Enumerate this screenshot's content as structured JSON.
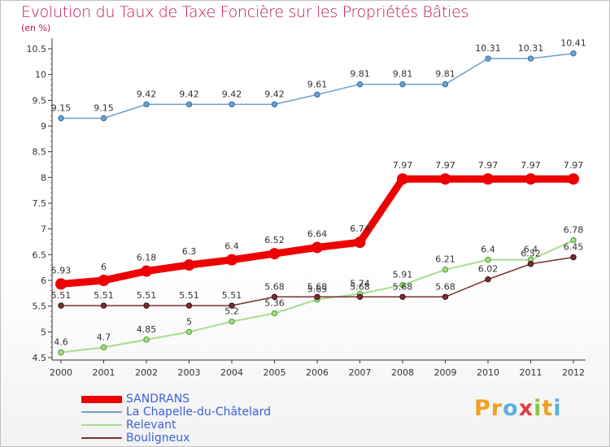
{
  "title": "Evolution du Taux de Taxe Foncière sur les Propriétés Bâties",
  "subtitle": "(en %)",
  "logo": {
    "text": "Proxiti",
    "letters": [
      "P",
      "r",
      "o",
      "x",
      "i",
      "t",
      "i"
    ],
    "colors": [
      "#f0a020",
      "#f0a020",
      "#5ab0e0",
      "#e04040",
      "#8cc63f",
      "#f0a020",
      "#5ab0e0"
    ]
  },
  "chart_data": {
    "type": "line",
    "x": [
      "2000",
      "2001",
      "2002",
      "2003",
      "2004",
      "2005",
      "2006",
      "2007",
      "2008",
      "2009",
      "2010",
      "2011",
      "2012"
    ],
    "ylim": [
      4.5,
      10.5
    ],
    "yticks": [
      "4.5",
      "5",
      "5.5",
      "6",
      "6.5",
      "7",
      "7.5",
      "8",
      "8.5",
      "9",
      "9.5",
      "10",
      "10.5"
    ],
    "grid": false,
    "legend_position": "bottom-left",
    "series": [
      {
        "name": "SANDRANS",
        "color": "#ee0000",
        "values": [
          5.93,
          6,
          6.18,
          6.3,
          6.4,
          6.52,
          6.64,
          6.74,
          7.97,
          7.97,
          7.97,
          7.97,
          7.97
        ],
        "labels": [
          "5.93",
          "6",
          "6.18",
          "6.3",
          "6.4",
          "6.52",
          "6.64",
          "6.74",
          "7.97",
          "7.97",
          "7.97",
          "7.97",
          "7.97"
        ]
      },
      {
        "name": "La Chapelle-du-Châtelard",
        "color": "#6fa0cc",
        "values": [
          9.15,
          9.15,
          9.42,
          9.42,
          9.42,
          9.42,
          9.61,
          9.81,
          9.81,
          9.81,
          10.31,
          10.31,
          10.41
        ],
        "labels": [
          "9.15",
          "9.15",
          "9.42",
          "9.42",
          "9.42",
          "9.42",
          "9.61",
          "9.81",
          "9.81",
          "9.81",
          "10.31",
          "10.31",
          "10.41"
        ]
      },
      {
        "name": "Relevant",
        "color": "#a8dc8c",
        "values": [
          4.6,
          4.7,
          4.85,
          5,
          5.2,
          5.36,
          5.63,
          5.74,
          5.91,
          6.21,
          6.4,
          6.4,
          6.78
        ],
        "labels": [
          "4.6",
          "4.7",
          "4.85",
          "5",
          "5.2",
          "5.36",
          "5.63",
          "5.74",
          "5.91",
          "6.21",
          "6.4",
          "6.4",
          "6.78"
        ]
      },
      {
        "name": "Bouligneux",
        "color": "#7a3030",
        "values": [
          5.51,
          5.51,
          5.51,
          5.51,
          5.51,
          5.68,
          5.68,
          5.68,
          5.68,
          5.68,
          6.02,
          6.32,
          6.45
        ],
        "labels": [
          "5.51",
          "5.51",
          "5.51",
          "5.51",
          "5.51",
          "5.68",
          "5.68",
          "5.68",
          "5.68",
          "5.68",
          "6.02",
          "6.32",
          "6.45"
        ]
      }
    ]
  }
}
